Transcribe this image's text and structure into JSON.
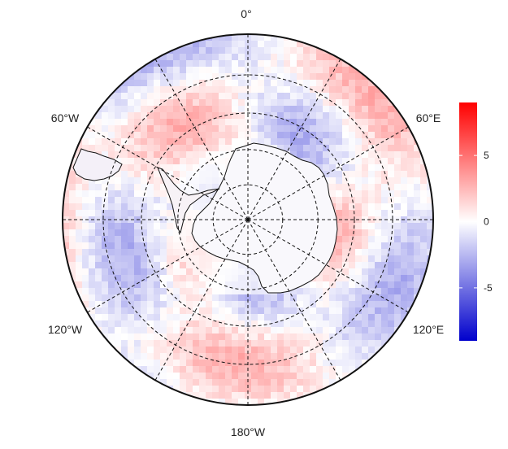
{
  "map": {
    "projection": "south-polar-stereographic",
    "longitude_labels": [
      {
        "lon": 0,
        "text": "0°"
      },
      {
        "lon": -60,
        "text": "60°W"
      },
      {
        "lon": 60,
        "text": "60°E"
      },
      {
        "lon": -120,
        "text": "120°W"
      },
      {
        "lon": 120,
        "text": "120°E"
      },
      {
        "lon": 180,
        "text": "180°W"
      }
    ],
    "graticule": {
      "meridians_deg": [
        0,
        30,
        60,
        90,
        120,
        150,
        180,
        210,
        240,
        270,
        300,
        330
      ],
      "latitude_circles_deg": [
        -80,
        -70,
        -60,
        -50
      ],
      "outer_boundary_lat_deg": -40,
      "line_style": "dashed"
    },
    "features": [
      "Antarctica coastline",
      "South America tip"
    ]
  },
  "colorbar": {
    "ticks": [
      {
        "value": 5,
        "text": "5"
      },
      {
        "value": 0,
        "text": "0"
      },
      {
        "value": -5,
        "text": "-5"
      }
    ],
    "min": -9,
    "max": 9,
    "colors": {
      "low": "#0000cc",
      "mid": "#ffffff",
      "high": "#ff0000"
    }
  }
}
